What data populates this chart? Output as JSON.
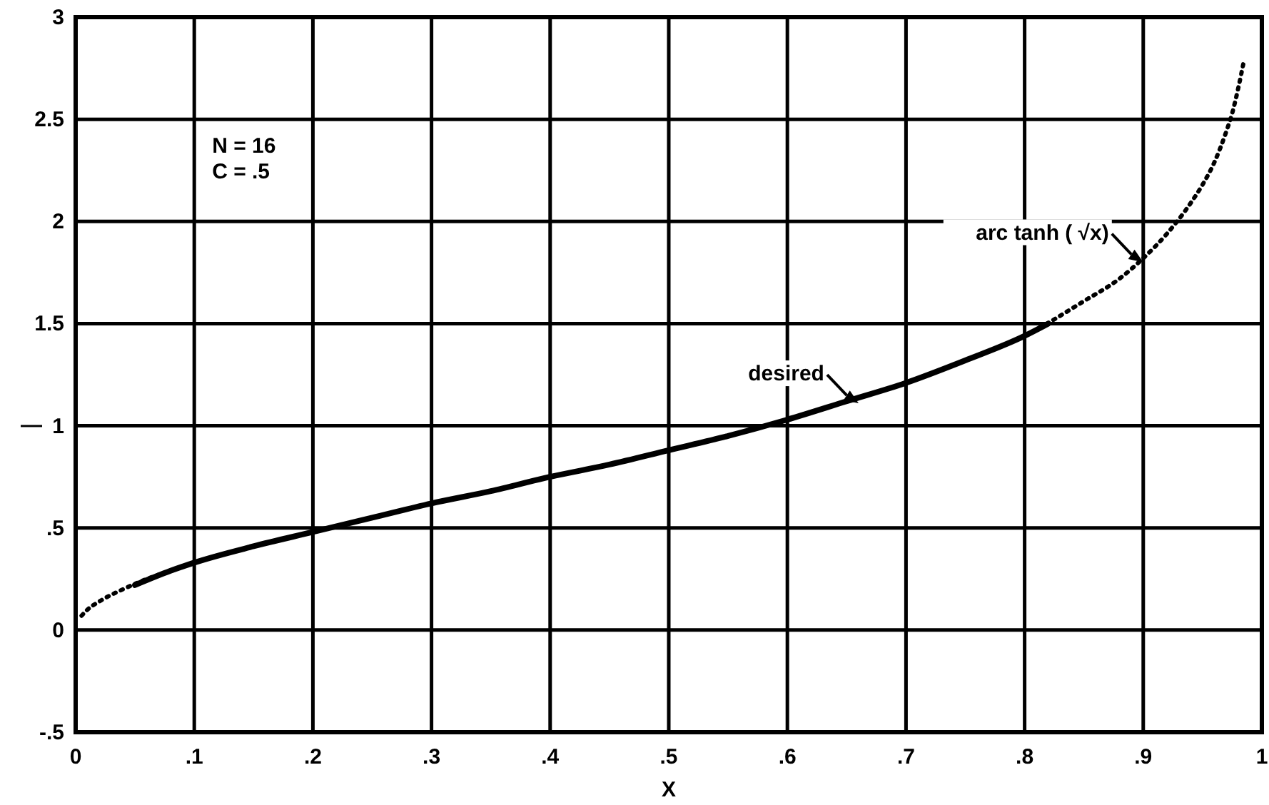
{
  "chart_data": {
    "type": "line",
    "xlabel": "X",
    "ylabel": "—",
    "xlim": [
      0,
      1
    ],
    "ylim": [
      -0.5,
      3
    ],
    "xticks": [
      0,
      {
        "value": 0.1,
        "label": ".1"
      },
      {
        "value": 0.2,
        "label": ".2"
      },
      {
        "value": 0.3,
        "label": ".3"
      },
      {
        "value": 0.4,
        "label": ".4"
      },
      {
        "value": 0.5,
        "label": ".5"
      },
      {
        "value": 0.6,
        "label": ".6"
      },
      {
        "value": 0.7,
        "label": ".7"
      },
      {
        "value": 0.8,
        "label": ".8"
      },
      {
        "value": 0.9,
        "label": ".9"
      },
      1
    ],
    "yticks": [
      {
        "value": -0.5,
        "label": "-.5"
      },
      0,
      {
        "value": 0.5,
        "label": ".5"
      },
      1,
      1.5,
      2,
      2.5,
      3
    ],
    "grid": true,
    "series": [
      {
        "color": "#000000",
        "line_style": "dotted",
        "x": [
          0.005,
          0.01,
          0.02,
          0.04,
          0.06,
          0.08,
          0.1,
          0.15,
          0.2,
          0.25,
          0.3,
          0.35,
          0.4,
          0.45,
          0.5,
          0.55,
          0.6,
          0.65,
          0.7,
          0.75,
          0.8,
          0.85,
          0.88,
          0.9,
          0.92,
          0.94,
          0.95,
          0.96,
          0.97,
          0.975,
          0.98,
          0.985
        ],
        "values": [
          0.07,
          0.1,
          0.14,
          0.2,
          0.25,
          0.29,
          0.33,
          0.41,
          0.48,
          0.55,
          0.62,
          0.68,
          0.75,
          0.81,
          0.88,
          0.95,
          1.03,
          1.12,
          1.21,
          1.32,
          1.44,
          1.61,
          1.72,
          1.82,
          1.94,
          2.09,
          2.18,
          2.29,
          2.44,
          2.53,
          2.65,
          2.79
        ]
      },
      {
        "color": "#000000",
        "line_style": "solid",
        "x": [
          0.05,
          0.08,
          0.1,
          0.15,
          0.2,
          0.25,
          0.3,
          0.35,
          0.4,
          0.45,
          0.5,
          0.55,
          0.6,
          0.65,
          0.7,
          0.75,
          0.8,
          0.82
        ],
        "values": [
          0.22,
          0.29,
          0.33,
          0.41,
          0.48,
          0.55,
          0.62,
          0.68,
          0.75,
          0.81,
          0.88,
          0.95,
          1.03,
          1.12,
          1.21,
          1.32,
          1.44,
          1.5
        ]
      }
    ],
    "annotations": [
      "N = 16",
      "C = .5",
      {
        "text": "arc tanh ( √x)",
        "x": 0.9,
        "y": 1.8
      },
      {
        "text": "desired",
        "x": 0.66,
        "y": 1.11
      }
    ]
  }
}
